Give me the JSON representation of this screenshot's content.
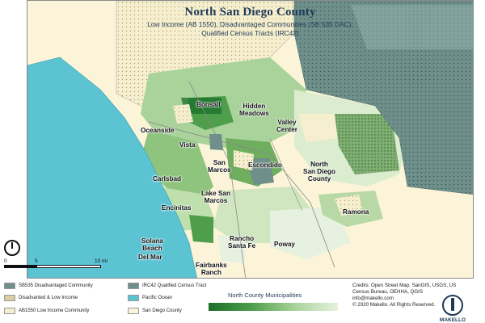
{
  "title": "North San Diego County",
  "subtitle_line1": "Low Income (AB 1550),  Disadvantaged Communities (SB 535 DAC),",
  "subtitle_line2": "Qualified Census Tracts (IRC42)",
  "places": {
    "bonsall": "Bonsall",
    "hidden_meadows": "Hidden\nMeadows",
    "oceanside": "Oceanside",
    "valley_center": "Valley\nCenter",
    "vista": "Vista",
    "san_marcos": "San\nMarcos",
    "escondido": "Escondido",
    "carlsbad": "Carlsbad",
    "north_sd_county": "North\nSan Diego\nCounty",
    "lake_san_marcos": "Lake San\nMarcos",
    "ramona": "Ramona",
    "encinitas": "Encinitas",
    "solana_beach": "Solana\nBeach",
    "rancho_santa_fe": "Rancho\nSanta Fe",
    "del_mar": "Del Mar",
    "poway": "Poway",
    "fairbanks_ranch": "Fairbanks\nRanch"
  },
  "scale": {
    "labels": [
      "0",
      "5",
      "10 mi"
    ]
  },
  "legend": {
    "sb535": "SB535 Disadvantaged Community",
    "dac_low_income": "Disadvanted & Low Income",
    "ab1550": "AB1550 Low Income Community",
    "irc42": "IRC42 Qualified Census Tract",
    "pacific": "Pacific Ocean",
    "sd_county": "San Diego County",
    "municipalities": "North County Municipalities"
  },
  "colors": {
    "ocean": "#5cc3d3",
    "county": "#fbf4d8",
    "irc42": "#6f8f8b",
    "dark_green": "#1b6e2a",
    "light_green": "#e7f1df"
  },
  "credits": {
    "line1": "Credits: Open Street Map, SanGIS, USGS, US",
    "line2": "Census Bureau, OEHHA, QGIS",
    "line3": "info@makello.com",
    "line4": "© 2020 Makello. All Rights Reserved."
  },
  "logo_text": "MAKELLO"
}
